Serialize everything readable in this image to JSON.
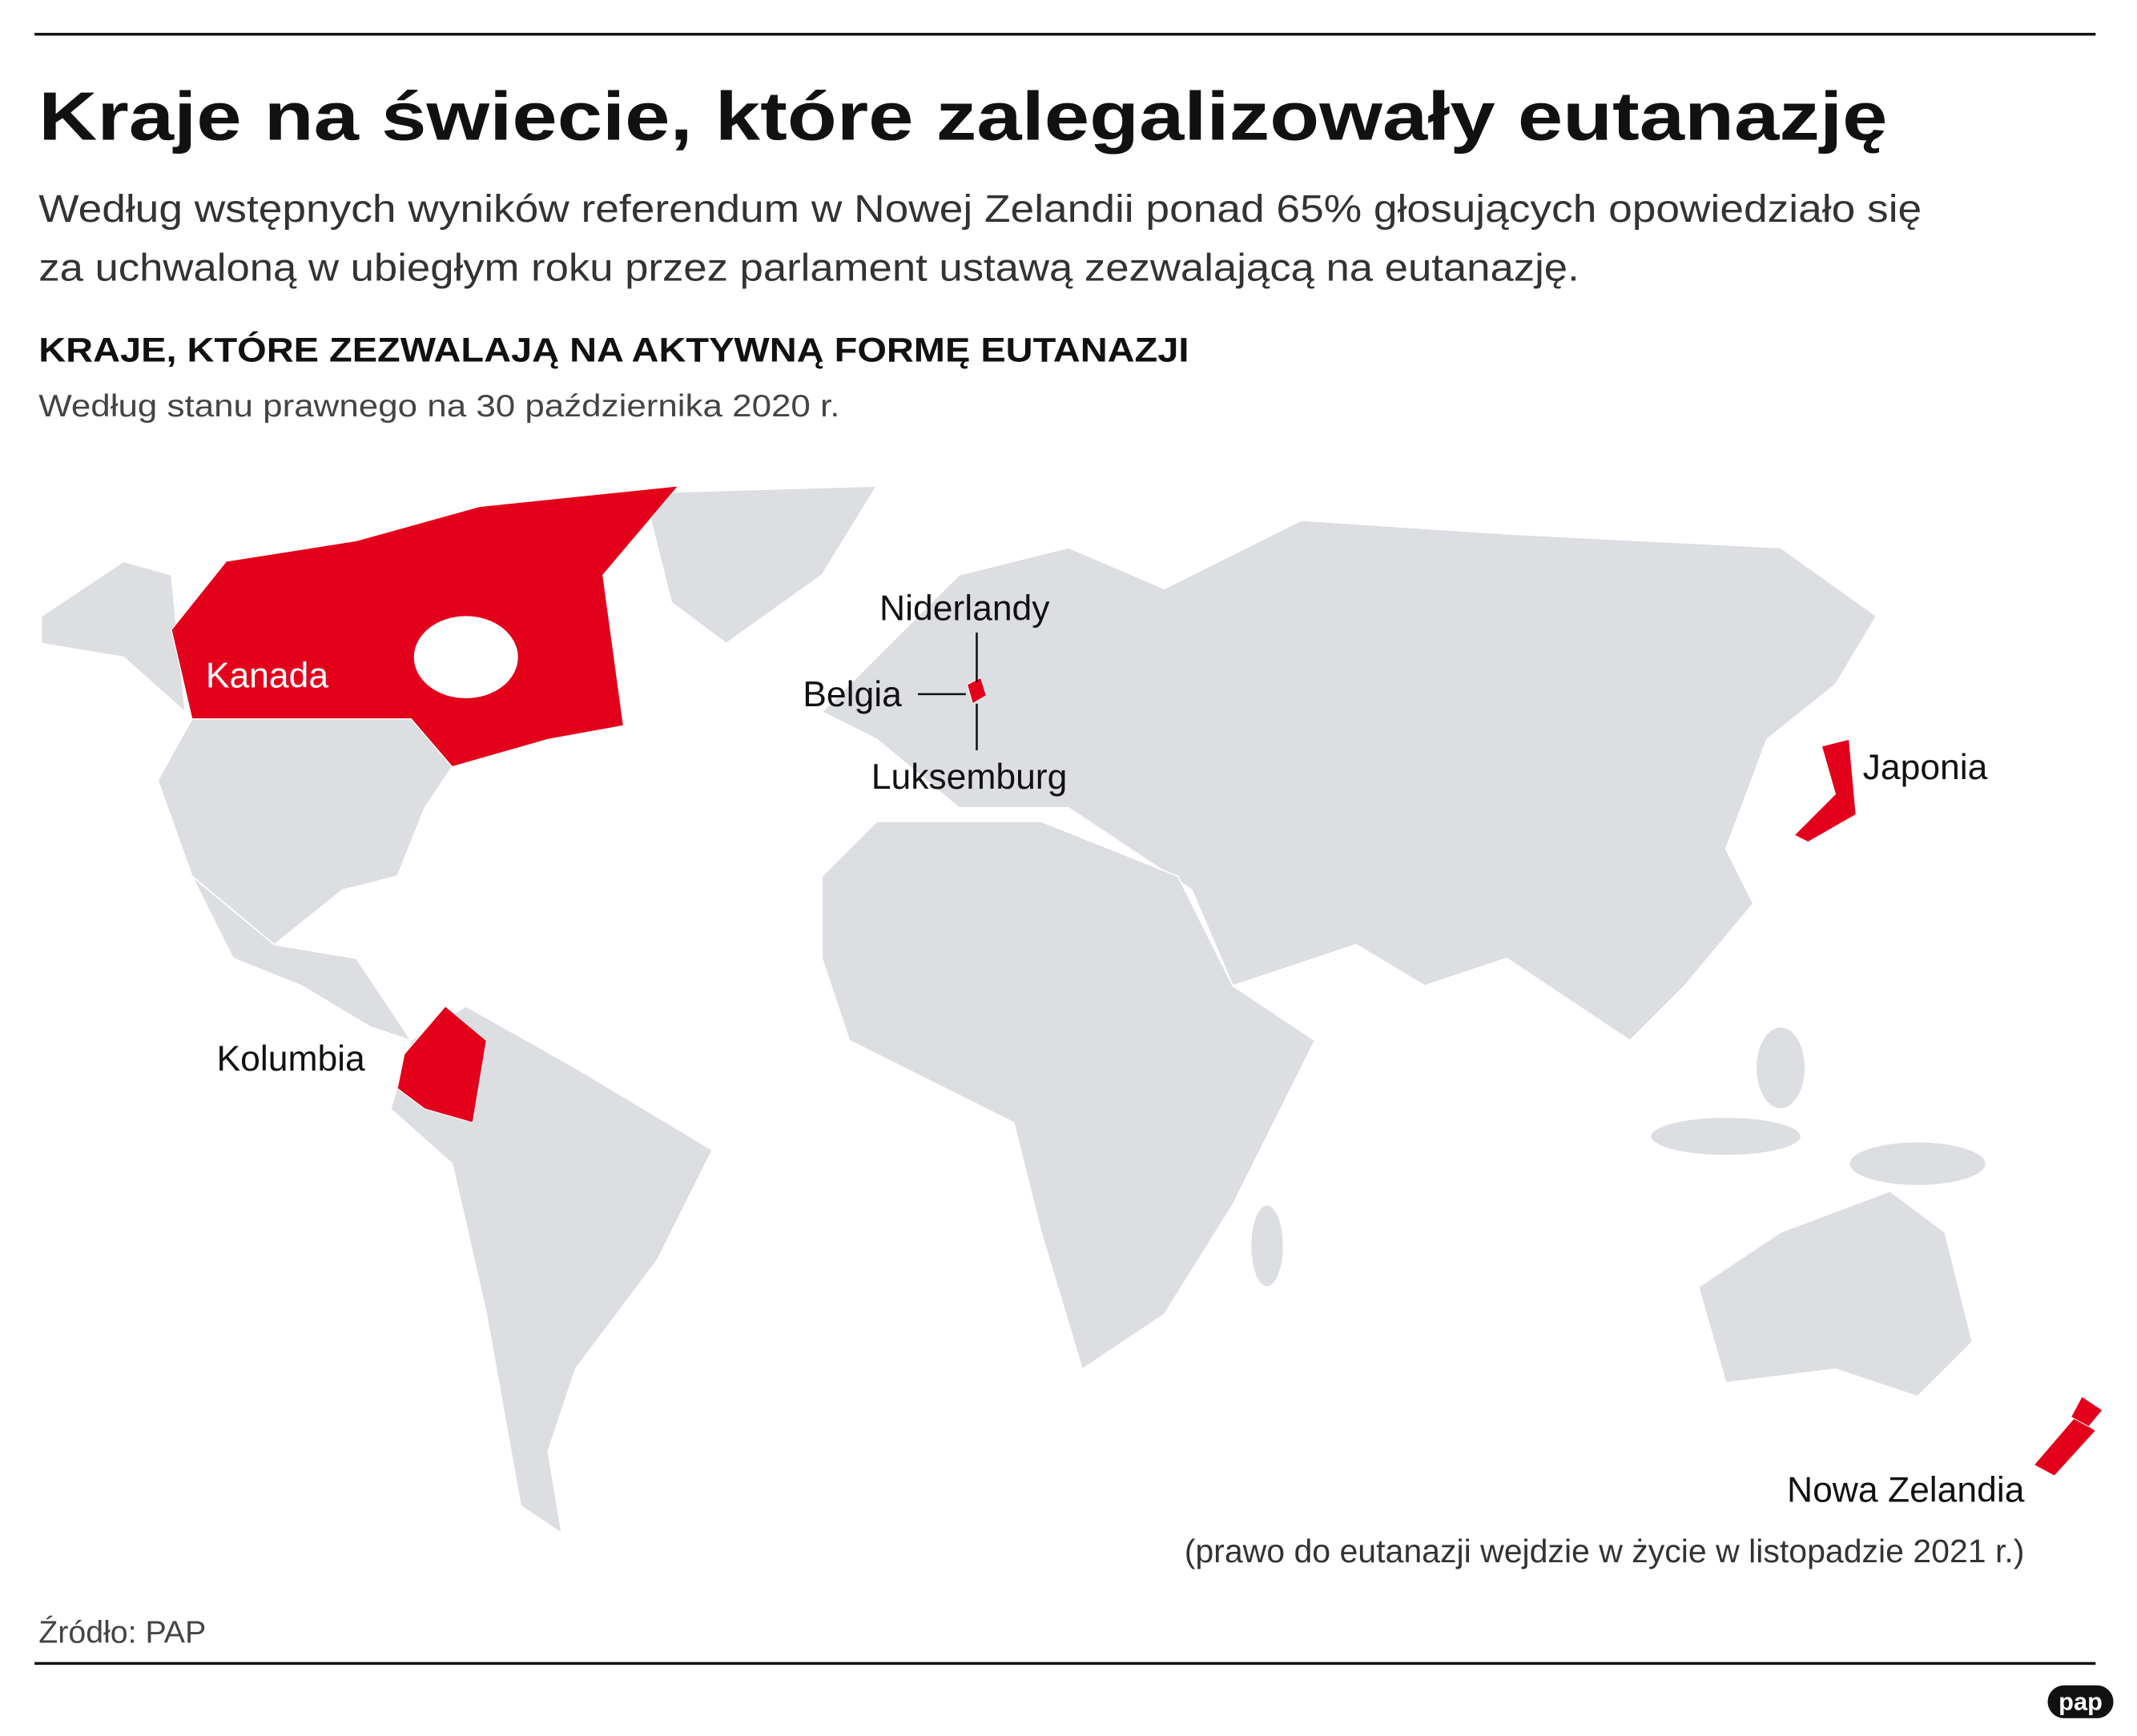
{
  "header": {
    "title": "Kraje na świecie, które zalegalizowały eutanazję",
    "subtitle": [
      "Według wstępnych wyników referendum w Nowej Zelandii ponad 65% głosujących opowiedziało się",
      "za uchwaloną w ubiegłym roku przez parlament ustawą zezwalającą na eutanazję."
    ]
  },
  "map": {
    "heading": "KRAJE, KTÓRE ZEZWALAJĄ NA AKTYWNĄ FORMĘ EUTANAZJI",
    "subheading": "Według stanu prawnego na 30 października 2020 r.",
    "labels": {
      "canada": "Kanada",
      "netherlands": "Niderlandy",
      "belgium": "Belgia",
      "luxembourg": "Luksemburg",
      "japan": "Japonia",
      "colombia": "Kolumbia",
      "new_zealand": "Nowa Zelandia"
    },
    "note": "(prawo do eutanazji wejdzie w życie w listopadzie 2021 r.)"
  },
  "footer": {
    "source": "Źródło: PAP",
    "logo": "pap"
  }
}
